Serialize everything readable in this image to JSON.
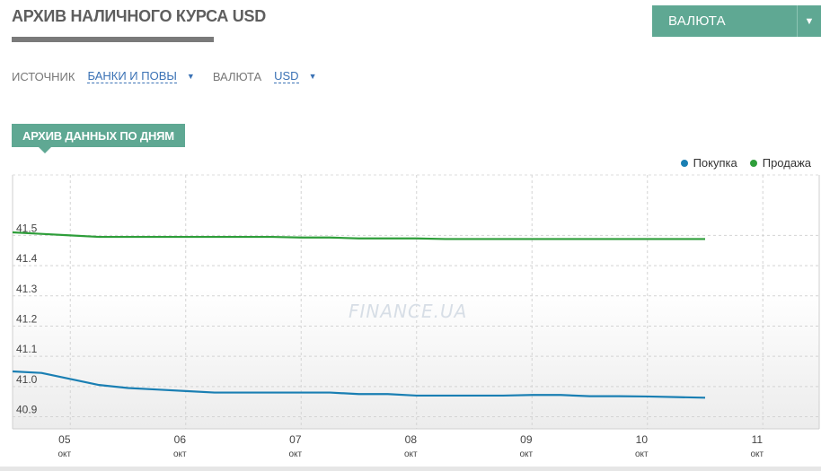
{
  "page": {
    "title": "АРХИВ НАЛИЧНОГО КУРСА USD",
    "currency_dropdown_label": "ВАЛЮТА"
  },
  "filters": {
    "source_label": "ИСТОЧНИК",
    "source_value": "БАНКИ И ПОВЫ",
    "currency_label": "ВАЛЮТА",
    "currency_value": "USD"
  },
  "section": {
    "badge": "АРХИВ ДАННЫХ ПО ДНЯМ"
  },
  "watermark": "FINANCE.UA",
  "colors": {
    "accent": "#5fa893",
    "buy": "#1a7fb3",
    "sell": "#2e9e3a"
  },
  "chart_data": {
    "type": "line",
    "title": "",
    "xlabel": "",
    "ylabel": "",
    "ylim": [
      40.86,
      41.7
    ],
    "xlim": [
      0,
      7
    ],
    "grid": true,
    "legend_position": "top-right",
    "y_ticks": [
      "40.9",
      "41.0",
      "41.1",
      "41.2",
      "41.3",
      "41.4",
      "41.5"
    ],
    "x_ticks": [
      {
        "day": "05",
        "month": "окт"
      },
      {
        "day": "06",
        "month": "окт"
      },
      {
        "day": "07",
        "month": "окт"
      },
      {
        "day": "08",
        "month": "окт"
      },
      {
        "day": "09",
        "month": "окт"
      },
      {
        "day": "10",
        "month": "окт"
      },
      {
        "day": "11",
        "month": "окт"
      }
    ],
    "series": [
      {
        "name": "Покупка",
        "color": "#1a7fb3",
        "x": [
          0,
          0.25,
          0.5,
          0.75,
          1,
          1.25,
          1.5,
          1.75,
          2,
          2.25,
          2.5,
          2.75,
          3,
          3.25,
          3.5,
          3.75,
          4,
          4.25,
          4.5,
          4.75,
          5,
          5.25,
          5.5,
          5.75,
          6
        ],
        "values": [
          41.05,
          41.045,
          41.025,
          41.005,
          40.995,
          40.99,
          40.985,
          40.98,
          40.98,
          40.98,
          40.98,
          40.98,
          40.975,
          40.975,
          40.97,
          40.97,
          40.97,
          40.97,
          40.972,
          40.972,
          40.968,
          40.968,
          40.967,
          40.965,
          40.963
        ]
      },
      {
        "name": "Продажа",
        "color": "#2e9e3a",
        "x": [
          0,
          0.25,
          0.5,
          0.75,
          1,
          1.25,
          1.5,
          1.75,
          2,
          2.25,
          2.5,
          2.75,
          3,
          3.25,
          3.5,
          3.75,
          4,
          4.25,
          4.5,
          4.75,
          5,
          5.25,
          5.5,
          5.75,
          6
        ],
        "values": [
          41.51,
          41.505,
          41.5,
          41.495,
          41.495,
          41.495,
          41.495,
          41.495,
          41.495,
          41.495,
          41.493,
          41.493,
          41.49,
          41.49,
          41.49,
          41.488,
          41.488,
          41.488,
          41.488,
          41.488,
          41.488,
          41.488,
          41.488,
          41.488,
          41.488
        ]
      }
    ]
  }
}
